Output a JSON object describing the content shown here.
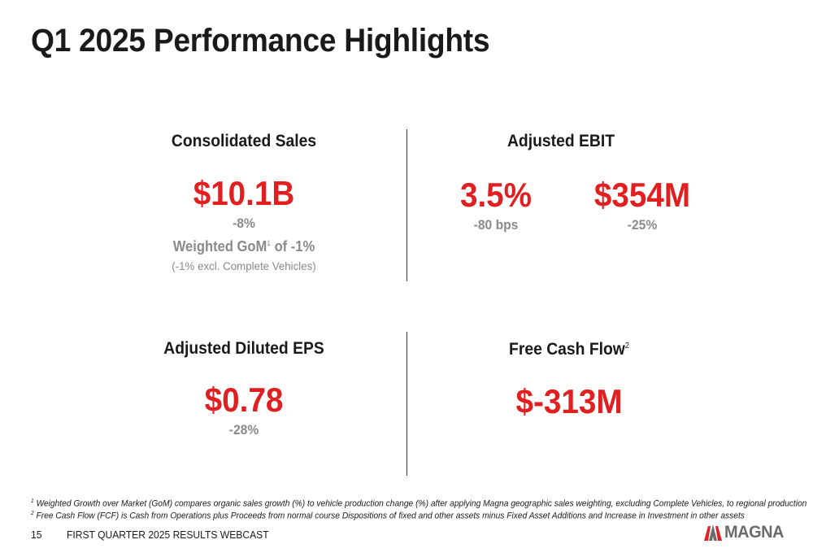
{
  "title": "Q1 2025 Performance Highlights",
  "colors": {
    "accent_red": "#e02020",
    "muted_gray": "#8a8a8a",
    "text": "#1a1a1a"
  },
  "sales": {
    "heading": "Consolidated Sales",
    "value": "$10.1B",
    "change": "-8%",
    "gom_prefix": "Weighted GoM",
    "gom_sup": "1",
    "gom_suffix": " of -1%",
    "excl": "(-1% excl. Complete Vehicles)"
  },
  "ebit": {
    "heading": "Adjusted EBIT",
    "margin_value": "3.5%",
    "margin_change": "-80 bps",
    "amount_value": "$354M",
    "amount_change": "-25%"
  },
  "eps": {
    "heading": "Adjusted Diluted EPS",
    "value": "$0.78",
    "change": "-28%"
  },
  "fcf": {
    "heading": "Free Cash Flow",
    "heading_sup": "2",
    "value": "$-313M"
  },
  "footnotes": [
    {
      "num": "1",
      "text": " Weighted Growth over Market (GoM) compares organic sales growth (%) to vehicle production change (%) after applying Magna geographic sales weighting, excluding Complete Vehicles, to regional production"
    },
    {
      "num": "2",
      "text": " Free Cash Flow (FCF) is Cash from Operations plus Proceeds from normal course Dispositions of fixed and other assets minus Fixed Asset Additions and Increase in Investment in other assets"
    }
  ],
  "footer": {
    "page_number": "15",
    "event": "FIRST QUARTER 2025 RESULTS WEBCAST",
    "logo_text": "MAGNA",
    "logo_icon": "magna-logo-icon"
  }
}
